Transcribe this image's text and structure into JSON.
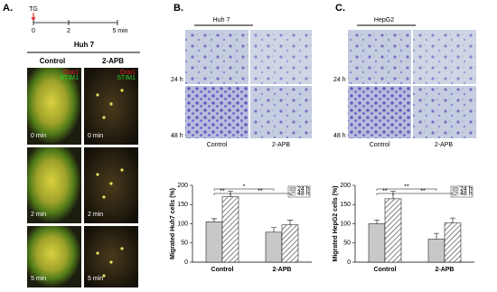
{
  "panel_a": {
    "label": "A.",
    "stimulus": "TG",
    "timeline": [
      "0",
      "2",
      "5 min"
    ],
    "title": "Huh 7",
    "columns": [
      "Control",
      "2-APB"
    ],
    "channels": [
      "Orai1",
      "STIM1"
    ],
    "times": [
      "0 min",
      "2 min",
      "5 min"
    ]
  },
  "panel_b": {
    "label": "B.",
    "title": "Huh 7",
    "rows": [
      "24 h",
      "48 h"
    ],
    "columns": [
      "Control",
      "2-APB"
    ]
  },
  "panel_c": {
    "label": "C.",
    "title": "HepG2",
    "rows": [
      "24 h",
      "48 h"
    ],
    "columns": [
      "Control",
      "2-APB"
    ]
  },
  "chart_data": [
    {
      "type": "bar",
      "y_label": "Migrated Huh7 cells (%)",
      "categories": [
        "Control",
        "2-APB"
      ],
      "series": [
        {
          "name": "24 h",
          "color": "#c8c8c8",
          "values": [
            105,
            78
          ],
          "errors": [
            8,
            12
          ]
        },
        {
          "name": "48 h",
          "color": "#ffffff",
          "hatch": true,
          "values": [
            170,
            97
          ],
          "errors": [
            15,
            12
          ]
        }
      ],
      "ylim": [
        0,
        200
      ],
      "yticks": [
        0,
        50,
        100,
        150,
        200
      ],
      "annotations": [
        "**",
        "*",
        "**"
      ]
    },
    {
      "type": "bar",
      "y_label": "Migrated HepG2 cells (%)",
      "categories": [
        "Control",
        "2-APB"
      ],
      "series": [
        {
          "name": "24 h",
          "color": "#c8c8c8",
          "values": [
            100,
            60
          ],
          "errors": [
            10,
            15
          ]
        },
        {
          "name": "48 h",
          "color": "#ffffff",
          "hatch": true,
          "values": [
            165,
            102
          ],
          "errors": [
            20,
            13
          ]
        }
      ],
      "ylim": [
        0,
        200
      ],
      "yticks": [
        0,
        50,
        100,
        150,
        200
      ],
      "annotations": [
        "**",
        "**",
        "**"
      ]
    }
  ]
}
